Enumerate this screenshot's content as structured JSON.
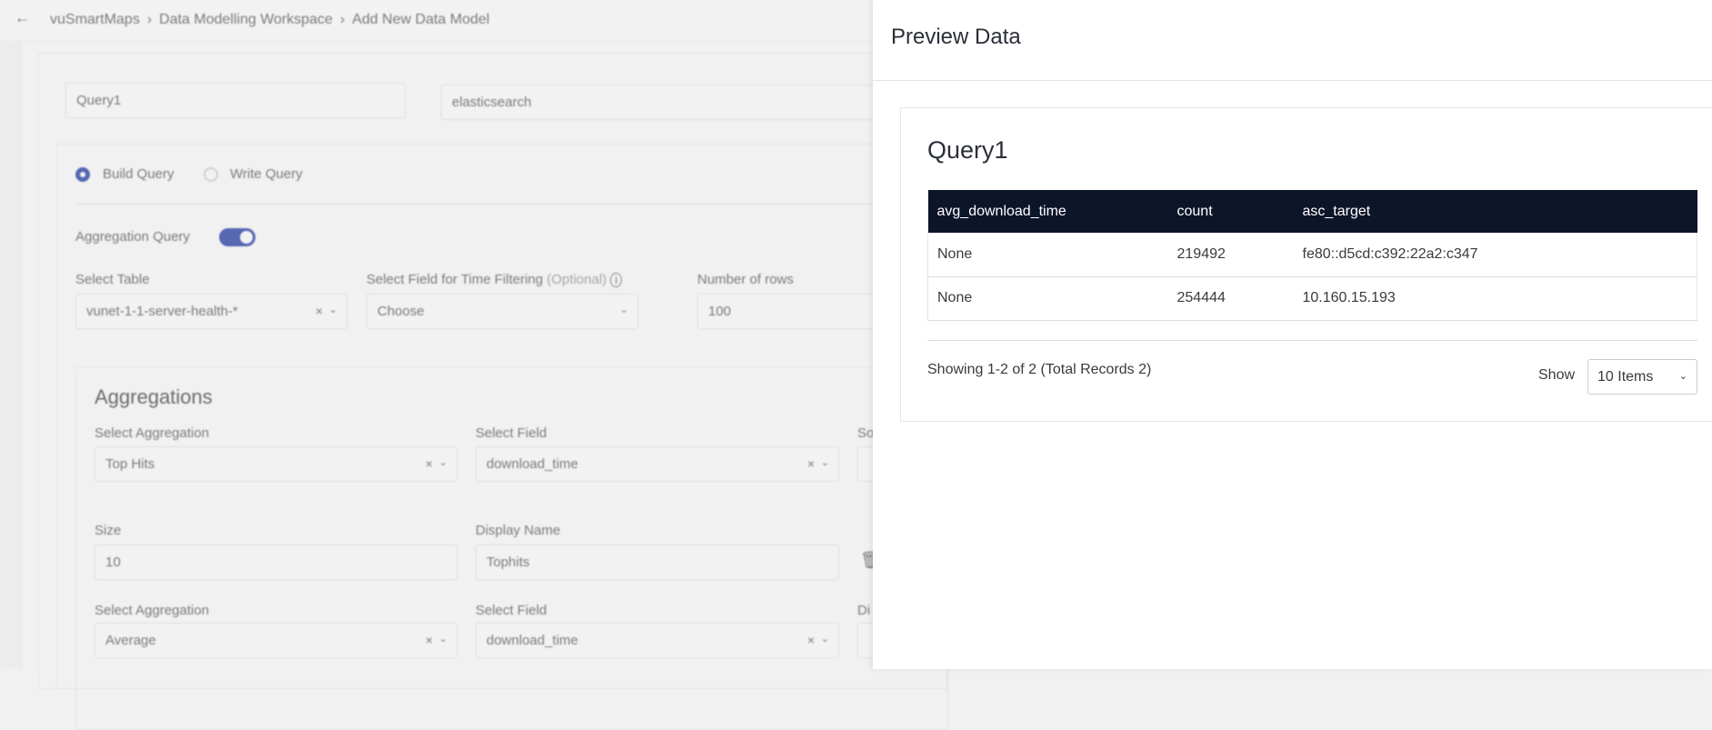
{
  "breadcrumb": {
    "items": [
      "vuSmartMaps",
      "Data Modelling Workspace",
      "Add New Data Model"
    ]
  },
  "form": {
    "query_name": "Query1",
    "data_source": "elasticsearch",
    "mode_options": [
      "Build Query",
      "Write Query"
    ],
    "selected_mode": "Build Query",
    "aggregation_query_label": "Aggregation Query",
    "aggregation_query_enabled": true,
    "select_table_label": "Select Table",
    "select_table_value": "vunet-1-1-server-health-*",
    "time_field_label": "Select Field for Time Filtering",
    "time_field_optional": "(Optional)",
    "time_field_value": "Choose",
    "rows_label": "Number of rows",
    "rows_value": "100",
    "aggregations_title": "Aggregations",
    "aggregations": [
      {
        "agg_label": "Select Aggregation",
        "agg_value": "Top Hits",
        "field_label": "Select Field",
        "field_value": "download_time",
        "third_label": "So",
        "size_label": "Size",
        "size_value": "10",
        "display_label": "Display Name",
        "display_value": "Tophits"
      },
      {
        "agg_label": "Select Aggregation",
        "agg_value": "Average",
        "field_label": "Select Field",
        "field_value": "download_time",
        "third_label": "Di"
      }
    ]
  },
  "preview": {
    "title": "Preview Data",
    "query_title": "Query1",
    "columns": [
      "avg_download_time",
      "count",
      "asc_target"
    ],
    "rows": [
      [
        "None",
        "219492",
        "fe80::d5cd:c392:22a2:c347"
      ],
      [
        "None",
        "254444",
        "10.160.15.193"
      ]
    ],
    "showing": "Showing 1-2 of 2 (Total Records 2)",
    "show_label": "Show",
    "page_size": "10 Items",
    "header_color": "#0d1529"
  },
  "accent_color": "#3d50a8"
}
